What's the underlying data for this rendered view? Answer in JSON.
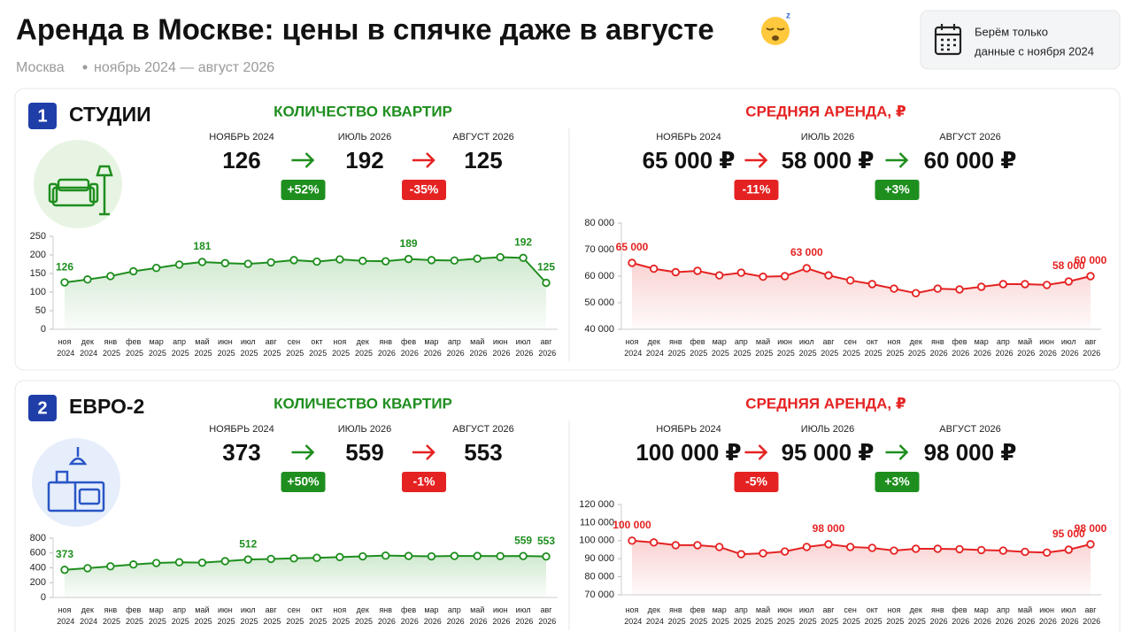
{
  "header": {
    "title": "Аренда в Москве: цены в спячке даже в августе",
    "city": "Москва",
    "period": "ноябрь 2024 — август 2026"
  },
  "note": {
    "lines": [
      "Берём только",
      "данные с ноября 2024"
    ]
  },
  "sections": [
    {
      "number": "1",
      "name": "СТУДИИ",
      "count": {
        "heading": "КОЛИЧЕСТВО КВАРТИР",
        "stats": [
          {
            "label": "НОЯБРЬ 2024",
            "value": "126"
          },
          {
            "label": "ИЮЛЬ 2026",
            "value": "192"
          },
          {
            "label": "АВГУСТ 2026",
            "value": "125"
          }
        ],
        "changes": [
          "+52%",
          "-35%"
        ]
      },
      "rent": {
        "heading": "СРЕДНЯЯ АРЕНДА, ₽",
        "stats": [
          {
            "label": "НОЯБРЬ 2024",
            "value": "65 000 ₽"
          },
          {
            "label": "ИЮЛЬ 2026",
            "value": "58 000 ₽"
          },
          {
            "label": "АВГУСТ 2026",
            "value": "60 000 ₽"
          }
        ],
        "changes": [
          "-11%",
          "+3%"
        ]
      }
    },
    {
      "number": "2",
      "name": "ЕВРО-2",
      "count": {
        "heading": "КОЛИЧЕСТВО КВАРТИР",
        "stats": [
          {
            "label": "НОЯБРЬ 2024",
            "value": "373"
          },
          {
            "label": "ИЮЛЬ 2026",
            "value": "559"
          },
          {
            "label": "АВГУСТ 2026",
            "value": "553"
          }
        ],
        "changes": [
          "+50%",
          "-1%"
        ]
      },
      "rent": {
        "heading": "СРЕДНЯЯ АРЕНДА, ₽",
        "stats": [
          {
            "label": "НОЯБРЬ 2024",
            "value": "100 000 ₽"
          },
          {
            "label": "ИЮЛЬ 2026",
            "value": "95 000 ₽"
          },
          {
            "label": "АВГУСТ 2026",
            "value": "98 000 ₽"
          }
        ],
        "changes": [
          "-5%",
          "+3%"
        ]
      }
    }
  ],
  "chart_data": [
    {
      "type": "area",
      "color": "#1e8e1e",
      "categories": [
        "ноя 2024",
        "дек 2024",
        "янв 2025",
        "фев 2025",
        "мар 2025",
        "апр 2025",
        "май 2025",
        "июн 2025",
        "июл 2025",
        "авг 2025",
        "сен 2025",
        "окт 2025",
        "ноя 2025",
        "дек 2025",
        "янв 2026",
        "фев 2026",
        "мар 2026",
        "апр 2026",
        "май 2026",
        "июн 2026",
        "июл 2026",
        "авг 2026"
      ],
      "values": [
        126,
        134,
        143,
        156,
        165,
        174,
        181,
        178,
        176,
        180,
        186,
        182,
        188,
        184,
        183,
        189,
        186,
        185,
        190,
        194,
        192,
        125
      ],
      "value_labels": [
        "126",
        null,
        null,
        null,
        null,
        null,
        "181",
        null,
        null,
        null,
        null,
        null,
        null,
        null,
        null,
        "189",
        null,
        null,
        null,
        null,
        "192",
        "125"
      ],
      "ylim": [
        0,
        250
      ],
      "yticks": [
        0,
        50,
        100,
        150,
        200,
        250
      ]
    },
    {
      "type": "area",
      "color": "#e52222",
      "categories": [
        "ноя 2024",
        "дек 2024",
        "янв 2025",
        "фев 2025",
        "мар 2025",
        "апр 2025",
        "май 2025",
        "июн 2025",
        "июл 2025",
        "авг 2025",
        "сен 2025",
        "окт 2025",
        "ноя 2025",
        "дек 2025",
        "янв 2026",
        "фев 2026",
        "мар 2026",
        "апр 2026",
        "май 2026",
        "июн 2026",
        "июл 2026",
        "авг 2026"
      ],
      "values": [
        65000,
        62800,
        61500,
        62000,
        60300,
        61300,
        59800,
        60000,
        63000,
        60300,
        58400,
        57000,
        55300,
        53600,
        55300,
        55000,
        56000,
        57000,
        57000,
        56700,
        58000,
        60000
      ],
      "value_labels": [
        "65 000",
        null,
        null,
        null,
        null,
        null,
        null,
        null,
        "63 000",
        null,
        null,
        null,
        null,
        null,
        null,
        null,
        null,
        null,
        null,
        null,
        "58 000",
        "60 000"
      ],
      "ylim": [
        40000,
        80000
      ],
      "yticks": [
        {
          "value": 40000,
          "label": "40 000"
        },
        {
          "value": 50000,
          "label": "50 000"
        },
        {
          "value": 60000,
          "label": "60 000"
        },
        {
          "value": 70000,
          "label": "70 000"
        },
        {
          "value": 80000,
          "label": "80 000"
        }
      ]
    },
    {
      "type": "area",
      "color": "#1e8e1e",
      "categories": [
        "ноя 2024",
        "дек 2024",
        "янв 2025",
        "фев 2025",
        "мар 2025",
        "апр 2025",
        "май 2025",
        "июн 2025",
        "июл 2025",
        "авг 2025",
        "сен 2025",
        "окт 2025",
        "ноя 2025",
        "дек 2025",
        "янв 2026",
        "фев 2026",
        "мар 2026",
        "апр 2026",
        "май 2026",
        "июн 2026",
        "июл 2026",
        "авг 2026"
      ],
      "values": [
        373,
        395,
        420,
        445,
        465,
        475,
        470,
        490,
        512,
        520,
        528,
        535,
        545,
        555,
        565,
        560,
        555,
        560,
        560,
        558,
        559,
        553
      ],
      "value_labels": [
        "373",
        null,
        null,
        null,
        null,
        null,
        null,
        null,
        "512",
        null,
        null,
        null,
        null,
        null,
        null,
        null,
        null,
        null,
        null,
        null,
        "559",
        "553"
      ],
      "ylim": [
        0,
        800
      ],
      "yticks": [
        0,
        200,
        400,
        600,
        800
      ]
    },
    {
      "type": "area",
      "color": "#e52222",
      "categories": [
        "ноя 2024",
        "дек 2024",
        "янв 2025",
        "фев 2025",
        "мар 2025",
        "апр 2025",
        "май 2025",
        "июн 2025",
        "июл 2025",
        "авг 2025",
        "сен 2025",
        "окт 2025",
        "ноя 2025",
        "дек 2025",
        "янв 2026",
        "фев 2026",
        "мар 2026",
        "апр 2026",
        "май 2026",
        "июн 2026",
        "июл 2026",
        "авг 2026"
      ],
      "values": [
        100000,
        99000,
        97500,
        97500,
        96500,
        92500,
        93000,
        94000,
        96500,
        98000,
        96500,
        96000,
        94500,
        95500,
        95500,
        95300,
        94800,
        94500,
        93800,
        93400,
        95000,
        98000
      ],
      "value_labels": [
        "100 000",
        null,
        null,
        null,
        null,
        null,
        null,
        null,
        null,
        "98 000",
        null,
        null,
        null,
        null,
        null,
        null,
        null,
        null,
        null,
        null,
        "95 000",
        "98 000"
      ],
      "ylim": [
        70000,
        120000
      ],
      "yticks": [
        {
          "value": 70000,
          "label": "70 000"
        },
        {
          "value": 80000,
          "label": "80 000"
        },
        {
          "value": 90000,
          "label": "90 000"
        },
        {
          "value": 100000,
          "label": "100 000"
        },
        {
          "value": 110000,
          "label": "110 000"
        },
        {
          "value": 120000,
          "label": "120 000"
        }
      ]
    }
  ]
}
